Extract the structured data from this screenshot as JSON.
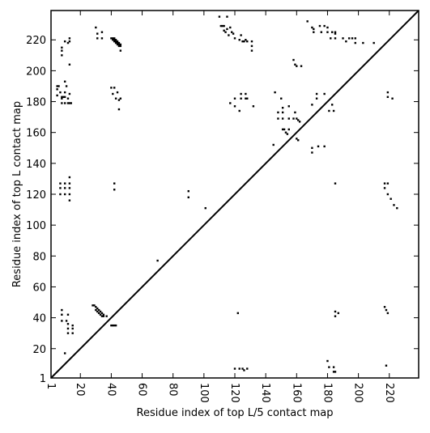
{
  "chart_data": {
    "type": "scatter",
    "title": "",
    "xlabel": "Residue index of top L/5 contact map",
    "ylabel": "Residue index of top L contact map",
    "xlim": [
      1,
      239
    ],
    "ylim": [
      1,
      239
    ],
    "xticks": [
      1,
      20,
      40,
      60,
      80,
      100,
      120,
      140,
      160,
      180,
      200,
      220
    ],
    "yticks": [
      1,
      20,
      40,
      60,
      80,
      100,
      120,
      140,
      160,
      180,
      200,
      220
    ],
    "xtick_rotation": "vertical",
    "grid": false,
    "diagonal_line": true,
    "color": "#000000",
    "series": [
      {
        "points": [
          [
            5,
            188
          ],
          [
            5,
            184
          ],
          [
            5,
            190
          ],
          [
            7,
            186
          ],
          [
            6,
            190
          ],
          [
            8,
            183
          ],
          [
            8,
            182
          ],
          [
            9,
            183
          ],
          [
            10,
            183
          ],
          [
            8,
            179
          ],
          [
            10,
            179
          ],
          [
            12,
            179
          ],
          [
            13,
            179
          ],
          [
            12,
            182
          ],
          [
            14,
            179
          ],
          [
            13,
            185
          ],
          [
            8,
            215
          ],
          [
            8,
            213
          ],
          [
            8,
            210
          ],
          [
            10,
            219
          ],
          [
            12,
            218
          ],
          [
            13,
            219
          ],
          [
            13,
            221
          ],
          [
            13,
            204
          ],
          [
            10,
            193
          ],
          [
            11,
            190
          ],
          [
            10,
            186
          ],
          [
            7,
            127
          ],
          [
            7,
            124
          ],
          [
            7,
            120
          ],
          [
            10,
            127
          ],
          [
            10,
            124
          ],
          [
            10,
            120
          ],
          [
            13,
            131
          ],
          [
            13,
            127
          ],
          [
            13,
            124
          ],
          [
            13,
            120
          ],
          [
            13,
            116
          ],
          [
            30,
            228
          ],
          [
            31,
            224
          ],
          [
            31,
            221
          ],
          [
            34,
            225
          ],
          [
            34,
            221
          ],
          [
            40,
            221
          ],
          [
            41,
            221
          ],
          [
            41,
            220
          ],
          [
            42,
            221
          ],
          [
            42,
            220
          ],
          [
            42,
            219
          ],
          [
            43,
            220
          ],
          [
            43,
            219
          ],
          [
            43,
            218
          ],
          [
            44,
            219
          ],
          [
            44,
            218
          ],
          [
            44,
            217
          ],
          [
            45,
            218
          ],
          [
            45,
            217
          ],
          [
            45,
            216
          ],
          [
            46,
            217
          ],
          [
            46,
            216
          ],
          [
            46,
            213
          ],
          [
            40,
            189
          ],
          [
            41,
            185
          ],
          [
            42,
            189
          ],
          [
            43,
            182
          ],
          [
            44,
            186
          ],
          [
            45,
            181
          ],
          [
            45,
            175
          ],
          [
            46,
            182
          ],
          [
            42,
            127
          ],
          [
            42,
            123
          ],
          [
            110,
            235
          ],
          [
            111,
            229
          ],
          [
            112,
            229
          ],
          [
            113,
            226
          ],
          [
            113,
            229
          ],
          [
            114,
            225
          ],
          [
            115,
            235
          ],
          [
            115,
            227
          ],
          [
            116,
            223
          ],
          [
            117,
            228
          ],
          [
            118,
            225
          ],
          [
            119,
            224
          ],
          [
            120,
            221
          ],
          [
            123,
            220
          ],
          [
            125,
            219
          ],
          [
            126,
            219
          ],
          [
            127,
            220
          ],
          [
            128,
            219
          ],
          [
            131,
            219
          ],
          [
            131,
            216
          ],
          [
            131,
            213
          ],
          [
            124,
            223
          ],
          [
            117,
            179
          ],
          [
            120,
            177
          ],
          [
            120,
            182
          ],
          [
            123,
            174
          ],
          [
            124,
            182
          ],
          [
            124,
            185
          ],
          [
            127,
            182
          ],
          [
            127,
            185
          ],
          [
            128,
            182
          ],
          [
            132,
            177
          ],
          [
            145,
            152
          ],
          [
            146,
            186
          ],
          [
            148,
            173
          ],
          [
            148,
            169
          ],
          [
            150,
            182
          ],
          [
            151,
            176
          ],
          [
            151,
            173
          ],
          [
            151,
            169
          ],
          [
            151,
            162
          ],
          [
            152,
            162
          ],
          [
            153,
            160
          ],
          [
            154,
            159
          ],
          [
            155,
            162
          ],
          [
            155,
            177
          ],
          [
            155,
            169
          ],
          [
            158,
            169
          ],
          [
            159,
            173
          ],
          [
            160,
            169
          ],
          [
            160,
            156
          ],
          [
            161,
            155
          ],
          [
            161,
            168
          ],
          [
            162,
            167
          ],
          [
            158,
            207
          ],
          [
            159,
            204
          ],
          [
            160,
            203
          ],
          [
            163,
            203
          ],
          [
            167,
            232
          ],
          [
            170,
            228
          ],
          [
            171,
            225
          ],
          [
            171,
            227
          ],
          [
            175,
            229
          ],
          [
            176,
            225
          ],
          [
            178,
            229
          ],
          [
            180,
            228
          ],
          [
            180,
            225
          ],
          [
            182,
            221
          ],
          [
            183,
            225
          ],
          [
            185,
            224
          ],
          [
            185,
            221
          ],
          [
            185,
            225
          ],
          [
            170,
            178
          ],
          [
            170,
            150
          ],
          [
            170,
            147
          ],
          [
            173,
            185
          ],
          [
            173,
            182
          ],
          [
            174,
            151
          ],
          [
            178,
            185
          ],
          [
            178,
            151
          ],
          [
            181,
            174
          ],
          [
            183,
            178
          ],
          [
            184,
            174
          ],
          [
            190,
            221
          ],
          [
            192,
            219
          ],
          [
            194,
            221
          ],
          [
            196,
            221
          ],
          [
            198,
            218
          ],
          [
            198,
            221
          ],
          [
            203,
            218
          ],
          [
            210,
            218
          ],
          [
            219,
            186
          ],
          [
            219,
            183
          ],
          [
            222,
            182
          ],
          [
            217,
            127
          ],
          [
            217,
            124
          ],
          [
            219,
            127
          ],
          [
            219,
            120
          ],
          [
            221,
            117
          ],
          [
            223,
            113
          ],
          [
            225,
            111
          ]
        ]
      },
      {
        "points": [
          [
            8,
            45
          ],
          [
            8,
            42
          ],
          [
            8,
            38
          ],
          [
            11,
            38
          ],
          [
            12,
            42
          ],
          [
            12,
            36
          ],
          [
            12,
            33
          ],
          [
            12,
            30
          ],
          [
            15,
            35
          ],
          [
            15,
            33
          ],
          [
            15,
            30
          ],
          [
            10,
            17
          ],
          [
            28,
            48
          ],
          [
            29,
            48
          ],
          [
            30,
            47
          ],
          [
            30,
            45
          ],
          [
            31,
            46
          ],
          [
            31,
            44
          ],
          [
            32,
            45
          ],
          [
            32,
            43
          ],
          [
            33,
            44
          ],
          [
            33,
            42
          ],
          [
            34,
            43
          ],
          [
            34,
            41
          ],
          [
            35,
            42
          ],
          [
            35,
            41
          ],
          [
            37,
            41
          ],
          [
            40,
            35
          ],
          [
            41,
            35
          ],
          [
            42,
            35
          ],
          [
            43,
            35
          ],
          [
            70,
            77
          ],
          [
            90,
            122
          ],
          [
            90,
            118
          ],
          [
            101,
            111
          ],
          [
            120,
            7
          ],
          [
            123,
            7
          ],
          [
            125,
            7
          ],
          [
            126,
            6
          ],
          [
            128,
            7
          ],
          [
            122,
            43
          ],
          [
            180,
            12
          ],
          [
            181,
            8
          ],
          [
            184,
            8
          ],
          [
            184,
            5
          ],
          [
            185,
            5
          ],
          [
            185,
            44
          ],
          [
            185,
            41
          ],
          [
            187,
            43
          ],
          [
            185,
            127
          ],
          [
            217,
            47
          ],
          [
            218,
            45
          ],
          [
            218,
            9
          ],
          [
            219,
            43
          ]
        ]
      }
    ]
  }
}
